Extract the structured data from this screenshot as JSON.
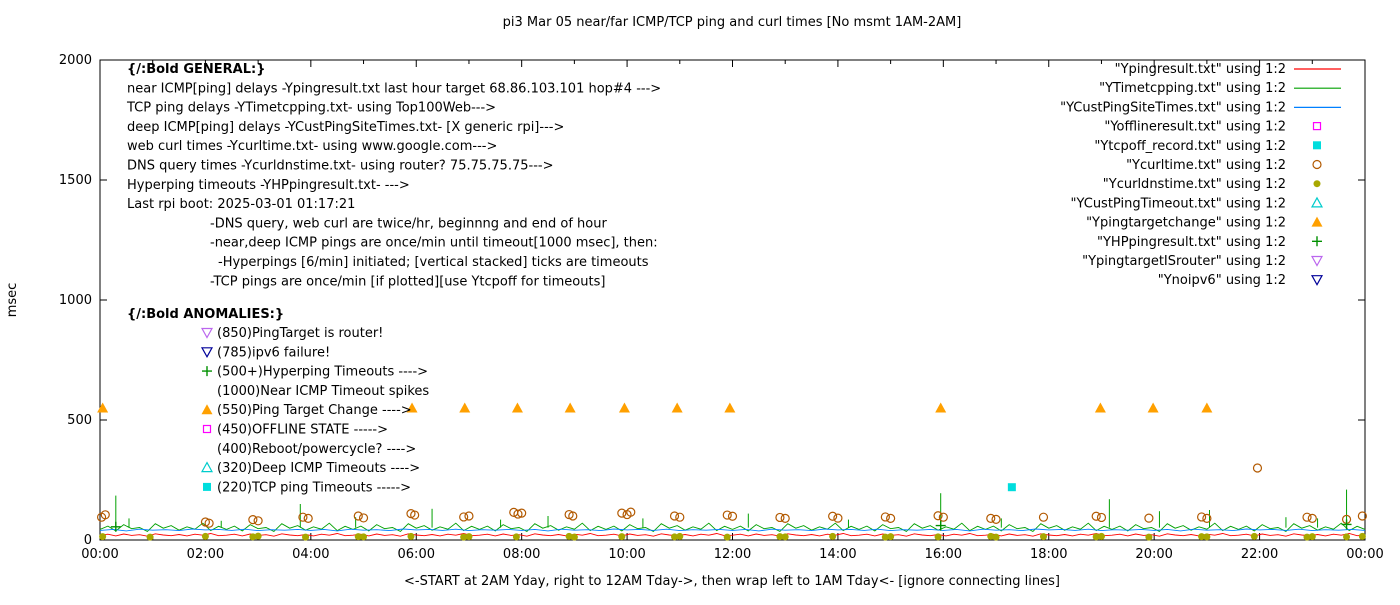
{
  "chart_data": {
    "type": "line",
    "title": "pi3 Mar 05  near/far ICMP/TCP ping and curl times [No msmt 1AM-2AM]",
    "xlabel": "<-START at 2AM Yday, right to 12AM Tday->, then wrap left to 1AM Tday<- [ignore connecting lines]",
    "ylabel": "msec",
    "xlim": [
      0,
      24
    ],
    "ylim": [
      0,
      2000
    ],
    "xticks": [
      "00:00",
      "02:00",
      "04:00",
      "06:00",
      "08:00",
      "10:00",
      "12:00",
      "14:00",
      "16:00",
      "18:00",
      "20:00",
      "22:00",
      "00:00"
    ],
    "yticks": [
      0,
      500,
      1000,
      1500,
      2000
    ],
    "legend_position": "top-right",
    "grid": false,
    "series": [
      {
        "id": "Ypingresult",
        "name": "\"Ypingresult.txt\" using 1:2",
        "kind": "line",
        "color": "#ff0000",
        "x_step": 0.15,
        "base_pattern": [
          20,
          24,
          17,
          25,
          19,
          22,
          16,
          26,
          21,
          18,
          23,
          17,
          24,
          20,
          27,
          18
        ],
        "spikes": []
      },
      {
        "id": "YTimetcpping",
        "name": "\"YTimetcpping.txt\" using 1:2",
        "kind": "line",
        "color": "#00a000",
        "x_step": 0.15,
        "base_pattern": [
          44,
          58,
          38,
          64,
          47,
          52,
          36,
          68,
          49,
          60,
          41,
          55,
          45,
          70,
          39,
          57
        ],
        "spikes": [
          [
            0.3,
            185
          ],
          [
            0.55,
            90
          ],
          [
            2.3,
            80
          ],
          [
            3.8,
            150
          ],
          [
            4.85,
            95
          ],
          [
            6.3,
            130
          ],
          [
            7.6,
            85
          ],
          [
            8.5,
            100
          ],
          [
            10.3,
            90
          ],
          [
            12.3,
            110
          ],
          [
            14.2,
            85
          ],
          [
            15.95,
            195
          ],
          [
            17.1,
            90
          ],
          [
            19.15,
            170
          ],
          [
            20.1,
            120
          ],
          [
            21.05,
            125
          ],
          [
            22.5,
            95
          ],
          [
            23.1,
            90
          ],
          [
            23.65,
            210
          ]
        ]
      },
      {
        "id": "YCustPingSiteTimes",
        "name": "\"YCustPingSiteTimes.txt\" using 1:2",
        "kind": "line",
        "color": "#0080ff",
        "x_step": 0.25,
        "base_pattern": [
          40,
          44,
          38,
          45,
          41,
          43,
          39,
          46,
          42,
          44,
          40,
          45,
          39,
          43,
          41,
          44
        ],
        "spikes": []
      },
      {
        "id": "Yofflineresult",
        "name": "\"Yofflineresult.txt\" using 1:2",
        "kind": "scatter",
        "marker": "square-open",
        "color": "#ff00ff",
        "points": []
      },
      {
        "id": "Ytcpoff_record",
        "name": "\"Ytcpoff_record.txt\" using 1:2",
        "kind": "scatter",
        "marker": "square-filled",
        "color": "#00dddd",
        "points": [
          [
            17.3,
            220
          ]
        ]
      },
      {
        "id": "Ycurltime",
        "name": "\"Ycurltime.txt\" using 1:2",
        "kind": "scatter",
        "marker": "circle-open",
        "color": "#b25900",
        "points": [
          [
            0.03,
            95
          ],
          [
            0.1,
            105
          ],
          [
            2.0,
            75
          ],
          [
            2.07,
            70
          ],
          [
            2.9,
            85
          ],
          [
            3.0,
            80
          ],
          [
            3.85,
            95
          ],
          [
            3.95,
            90
          ],
          [
            4.9,
            100
          ],
          [
            5.0,
            92
          ],
          [
            5.9,
            110
          ],
          [
            5.97,
            104
          ],
          [
            6.9,
            96
          ],
          [
            7.0,
            100
          ],
          [
            7.85,
            115
          ],
          [
            7.93,
            108
          ],
          [
            8.0,
            112
          ],
          [
            8.9,
            106
          ],
          [
            8.97,
            100
          ],
          [
            9.9,
            112
          ],
          [
            10.0,
            106
          ],
          [
            10.07,
            116
          ],
          [
            10.9,
            100
          ],
          [
            11.0,
            95
          ],
          [
            11.9,
            104
          ],
          [
            12.0,
            99
          ],
          [
            12.9,
            94
          ],
          [
            13.0,
            90
          ],
          [
            13.9,
            99
          ],
          [
            14.0,
            91
          ],
          [
            14.9,
            96
          ],
          [
            15.0,
            90
          ],
          [
            15.9,
            101
          ],
          [
            16.0,
            95
          ],
          [
            16.9,
            90
          ],
          [
            17.0,
            86
          ],
          [
            17.9,
            95
          ],
          [
            18.9,
            99
          ],
          [
            19.0,
            94
          ],
          [
            19.9,
            91
          ],
          [
            20.9,
            96
          ],
          [
            21.0,
            90
          ],
          [
            21.96,
            300
          ],
          [
            22.9,
            95
          ],
          [
            23.0,
            90
          ],
          [
            23.65,
            86
          ],
          [
            23.95,
            100
          ]
        ]
      },
      {
        "id": "Ycurldnstime",
        "name": "\"Ycurldnstime.txt\" using 1:2",
        "kind": "scatter",
        "marker": "circle-filled",
        "color": "#a8a800",
        "points": [
          [
            0.05,
            14
          ],
          [
            0.95,
            12
          ],
          [
            2.0,
            15
          ],
          [
            2.9,
            13
          ],
          [
            3.0,
            16
          ],
          [
            3.9,
            12
          ],
          [
            4.9,
            14
          ],
          [
            5.0,
            13
          ],
          [
            5.9,
            15
          ],
          [
            6.9,
            12
          ],
          [
            7.0,
            14
          ],
          [
            7.9,
            13
          ],
          [
            8.9,
            15
          ],
          [
            9.0,
            12
          ],
          [
            9.9,
            14
          ],
          [
            10.9,
            13
          ],
          [
            11.0,
            15
          ],
          [
            11.9,
            12
          ],
          [
            12.9,
            14
          ],
          [
            13.0,
            13
          ],
          [
            13.9,
            15
          ],
          [
            14.9,
            12
          ],
          [
            15.0,
            14
          ],
          [
            15.9,
            13
          ],
          [
            16.9,
            15
          ],
          [
            17.0,
            12
          ],
          [
            17.9,
            14
          ],
          [
            18.9,
            13
          ],
          [
            19.0,
            15
          ],
          [
            19.9,
            12
          ],
          [
            20.9,
            14
          ],
          [
            21.0,
            13
          ],
          [
            21.9,
            15
          ],
          [
            22.9,
            12
          ],
          [
            23.0,
            14
          ],
          [
            23.65,
            13
          ],
          [
            23.95,
            15
          ]
        ]
      },
      {
        "id": "YCustPingTimeout",
        "name": "\"YCustPingTimeout.txt\" using 1:2",
        "kind": "scatter",
        "marker": "triangle-up-open",
        "color": "#00cccc",
        "points": []
      },
      {
        "id": "Ypingtargetchange",
        "name": "\"Ypingtargetchange\" using 1:2",
        "kind": "scatter",
        "marker": "triangle-up-filled",
        "color": "#ffa000",
        "points": [
          [
            0.05,
            550
          ],
          [
            5.92,
            550
          ],
          [
            6.92,
            550
          ],
          [
            7.92,
            550
          ],
          [
            8.92,
            550
          ],
          [
            9.95,
            550
          ],
          [
            10.95,
            550
          ],
          [
            11.95,
            550
          ],
          [
            15.95,
            550
          ],
          [
            18.98,
            550
          ],
          [
            19.98,
            550
          ],
          [
            21.0,
            550
          ]
        ]
      },
      {
        "id": "YHPpingresult",
        "name": "\"YHPpingresult.txt\" using 1:2",
        "kind": "scatter",
        "marker": "plus",
        "color": "#009000",
        "points": [
          [
            0.3,
            55
          ],
          [
            15.95,
            60
          ],
          [
            23.65,
            65
          ]
        ]
      },
      {
        "id": "YpingtargetISrouter",
        "name": "\"YpingtargetISrouter\" using 1:2",
        "kind": "scatter",
        "marker": "triangle-down-open",
        "color": "#bb66ee",
        "points": []
      },
      {
        "id": "Ynoipv6",
        "name": "\"Ynoipv6\" using 1:2",
        "kind": "scatter",
        "marker": "triangle-down-open",
        "color": "#000099",
        "points": []
      }
    ],
    "annotations": {
      "general": {
        "header": "{/:Bold GENERAL:}",
        "lines": [
          {
            "text": "near ICMP[ping] delays -Ypingresult.txt last hour target 68.86.103.101 hop#4 --->",
            "indent": 0
          },
          {
            "text": "TCP ping delays -YTimetcpping.txt- using Top100Web--->",
            "indent": 0
          },
          {
            "text": "deep ICMP[ping] delays -YCustPingSiteTimes.txt- [X generic rpi]--->",
            "indent": 0
          },
          {
            "text": "web curl times -Ycurltime.txt- using www.google.com--->",
            "indent": 0
          },
          {
            "text": "DNS query times -Ycurldnstime.txt- using router? 75.75.75.75--->",
            "indent": 0
          },
          {
            "text": "Hyperping timeouts -YHPpingresult.txt- --->",
            "indent": 0
          },
          {
            "text": "Last rpi boot: 2025-03-01 01:17:21",
            "indent": 0
          },
          {
            "text": "-DNS query, web curl are twice/hr, beginnng and end of hour",
            "indent": 1
          },
          {
            "text": "-near,deep ICMP pings are once/min until timeout[1000 msec], then:",
            "indent": 1
          },
          {
            "text": "-Hyperpings [6/min] initiated; [vertical stacked] ticks are timeouts",
            "indent": 2
          },
          {
            "text": "-TCP pings are once/min [if plotted][use Ytcpoff for timeouts]",
            "indent": 1
          }
        ]
      },
      "anomalies": {
        "header": "{/:Bold ANOMALIES:}",
        "items": [
          {
            "marker": "triangle-down-open",
            "color": "#bb66ee",
            "text": "(850)PingTarget is router!"
          },
          {
            "marker": "triangle-down-open",
            "color": "#000099",
            "text": "(785)ipv6 failure!"
          },
          {
            "marker": "plus",
            "color": "#009000",
            "text": "(500+)Hyperping Timeouts ---->"
          },
          {
            "marker": null,
            "color": null,
            "text": "(1000)Near ICMP Timeout spikes"
          },
          {
            "marker": "triangle-up-filled",
            "color": "#ffa000",
            "text": "(550)Ping Target Change ---->"
          },
          {
            "marker": "square-open",
            "color": "#ff00ff",
            "text": "(450)OFFLINE STATE ----->"
          },
          {
            "marker": null,
            "color": null,
            "text": "(400)Reboot/powercycle? ---->"
          },
          {
            "marker": "triangle-up-open",
            "color": "#00cccc",
            "text": "(320)Deep ICMP Timeouts ---->"
          },
          {
            "marker": "square-filled",
            "color": "#00dddd",
            "text": "(220)TCP ping Timeouts ----->"
          }
        ]
      }
    },
    "colors": {
      "axis": "#000000",
      "text": "#000000",
      "background": "#ffffff"
    }
  }
}
